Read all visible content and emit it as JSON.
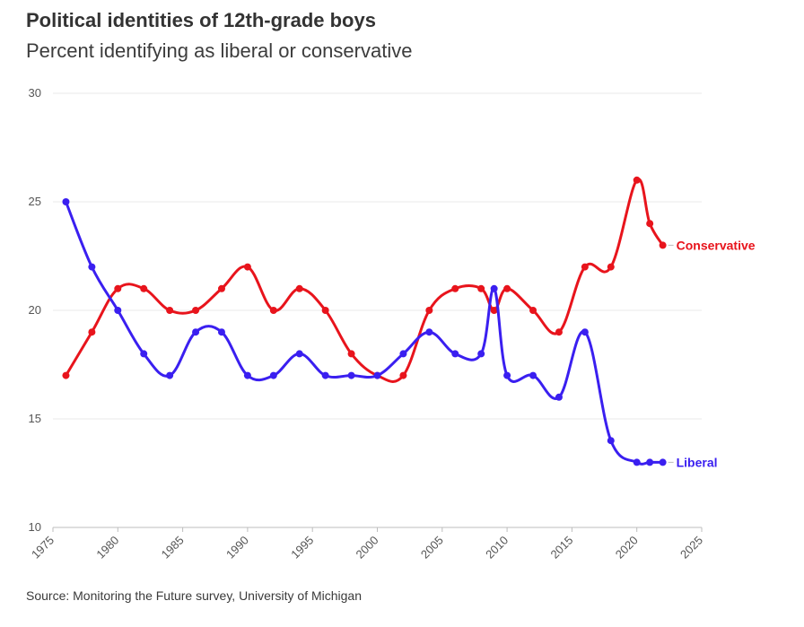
{
  "title": "Political identities of 12th-grade boys",
  "subtitle": "Percent identifying as liberal or conservative",
  "source": "Source: Monitoring the Future survey, University of Michigan",
  "chart_data": {
    "type": "line",
    "title": "Political identities of 12th-grade boys",
    "subtitle": "Percent identifying as liberal or conservative",
    "xlabel": "",
    "ylabel": "",
    "xlim": [
      1975,
      2025
    ],
    "ylim": [
      10,
      30
    ],
    "xticks": [
      1975,
      1980,
      1985,
      1990,
      1995,
      2000,
      2005,
      2010,
      2015,
      2020,
      2025
    ],
    "yticks": [
      10,
      15,
      20,
      25,
      30
    ],
    "grid": "horizontal",
    "legend": "direct labels at line ends",
    "series": [
      {
        "name": "Conservative",
        "color": "#e8141c",
        "x": [
          1976,
          1978,
          1980,
          1982,
          1984,
          1986,
          1988,
          1990,
          1992,
          1994,
          1996,
          1998,
          2000,
          2002,
          2004,
          2006,
          2008,
          2009,
          2010,
          2012,
          2014,
          2016,
          2018,
          2020,
          2021,
          2022
        ],
        "y": [
          17,
          19,
          21,
          21,
          20,
          20,
          21,
          22,
          20,
          21,
          20,
          18,
          17,
          17,
          20,
          21,
          21,
          20,
          21,
          20,
          19,
          22,
          22,
          26,
          24,
          23
        ]
      },
      {
        "name": "Liberal",
        "color": "#3a1ff0",
        "x": [
          1976,
          1978,
          1980,
          1982,
          1984,
          1986,
          1988,
          1990,
          1992,
          1994,
          1996,
          1998,
          2000,
          2002,
          2004,
          2006,
          2008,
          2009,
          2010,
          2012,
          2014,
          2016,
          2018,
          2020,
          2021,
          2022
        ],
        "y": [
          25,
          22,
          20,
          18,
          17,
          19,
          19,
          17,
          17,
          18,
          17,
          17,
          17,
          18,
          19,
          18,
          18,
          21,
          17,
          17,
          16,
          19,
          14,
          13,
          13,
          13
        ]
      }
    ]
  }
}
